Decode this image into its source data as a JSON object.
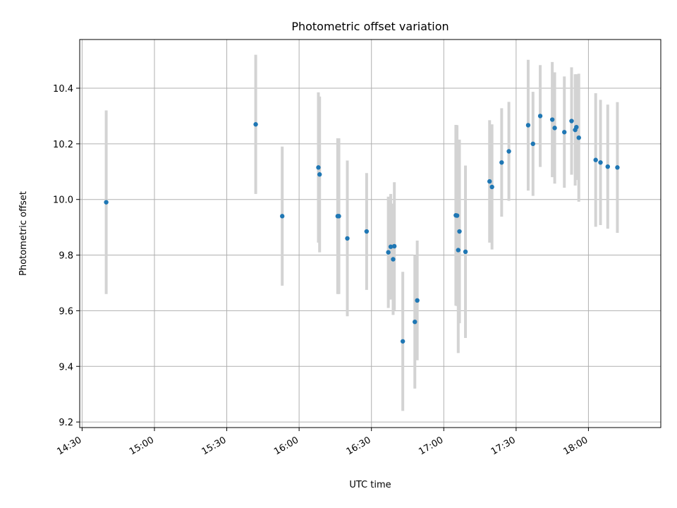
{
  "chart_data": {
    "type": "scatter",
    "title": "Photometric offset variation",
    "xlabel": "UTC time",
    "ylabel": "Photometric offset",
    "x_ticks": [
      "14:30",
      "15:00",
      "15:30",
      "16:00",
      "16:30",
      "17:00",
      "17:30",
      "18:00"
    ],
    "y_ticks": [
      "9.2",
      "9.4",
      "9.6",
      "9.8",
      "10.0",
      "10.2",
      "10.4"
    ],
    "xlim": [
      "14:29",
      "18:30"
    ],
    "ylim": [
      9.18,
      10.575
    ],
    "grid": true,
    "colors": {
      "points": "#1f77b4",
      "errorbars": "#d3d3d3",
      "grid": "#b0b0b0"
    },
    "points": [
      {
        "t": "14:40",
        "y": 9.99,
        "err": 0.33
      },
      {
        "t": "15:42",
        "y": 10.27,
        "err": 0.25
      },
      {
        "t": "15:53",
        "y": 9.94,
        "err": 0.25
      },
      {
        "t": "16:08",
        "y": 10.115,
        "err": 0.27
      },
      {
        "t": "16:08.5",
        "y": 10.09,
        "err": 0.28
      },
      {
        "t": "16:16",
        "y": 9.94,
        "err": 0.28
      },
      {
        "t": "16:16.5",
        "y": 9.94,
        "err": 0.28
      },
      {
        "t": "16:20",
        "y": 9.86,
        "err": 0.28
      },
      {
        "t": "16:28",
        "y": 9.885,
        "err": 0.21
      },
      {
        "t": "16:37",
        "y": 9.81,
        "err": 0.2
      },
      {
        "t": "16:38",
        "y": 9.83,
        "err": 0.19
      },
      {
        "t": "16:39",
        "y": 9.785,
        "err": 0.2
      },
      {
        "t": "16:39.5",
        "y": 9.832,
        "err": 0.23
      },
      {
        "t": "16:43",
        "y": 9.49,
        "err": 0.25
      },
      {
        "t": "16:48",
        "y": 9.56,
        "err": 0.24
      },
      {
        "t": "16:49",
        "y": 9.637,
        "err": 0.215
      },
      {
        "t": "17:05",
        "y": 9.943,
        "err": 0.325
      },
      {
        "t": "17:05.5",
        "y": 9.942,
        "err": 0.325
      },
      {
        "t": "17:06",
        "y": 9.818,
        "err": 0.37
      },
      {
        "t": "17:06.5",
        "y": 9.885,
        "err": 0.33
      },
      {
        "t": "17:09",
        "y": 9.812,
        "err": 0.31
      },
      {
        "t": "17:19",
        "y": 10.065,
        "err": 0.22
      },
      {
        "t": "17:20",
        "y": 10.045,
        "err": 0.225
      },
      {
        "t": "17:24",
        "y": 10.133,
        "err": 0.195
      },
      {
        "t": "17:27",
        "y": 10.173,
        "err": 0.178
      },
      {
        "t": "17:35",
        "y": 10.267,
        "err": 0.235
      },
      {
        "t": "17:37",
        "y": 10.2,
        "err": 0.187
      },
      {
        "t": "17:40",
        "y": 10.3,
        "err": 0.183
      },
      {
        "t": "17:45",
        "y": 10.287,
        "err": 0.207
      },
      {
        "t": "17:46",
        "y": 10.257,
        "err": 0.2
      },
      {
        "t": "17:50",
        "y": 10.242,
        "err": 0.2
      },
      {
        "t": "17:53",
        "y": 10.282,
        "err": 0.193
      },
      {
        "t": "17:54.5",
        "y": 10.25,
        "err": 0.2
      },
      {
        "t": "17:55",
        "y": 10.26,
        "err": 0.19
      },
      {
        "t": "17:56",
        "y": 10.222,
        "err": 0.23
      },
      {
        "t": "18:03",
        "y": 10.142,
        "err": 0.24
      },
      {
        "t": "18:05",
        "y": 10.133,
        "err": 0.225
      },
      {
        "t": "18:08",
        "y": 10.118,
        "err": 0.223
      },
      {
        "t": "18:12",
        "y": 10.115,
        "err": 0.235
      }
    ]
  }
}
